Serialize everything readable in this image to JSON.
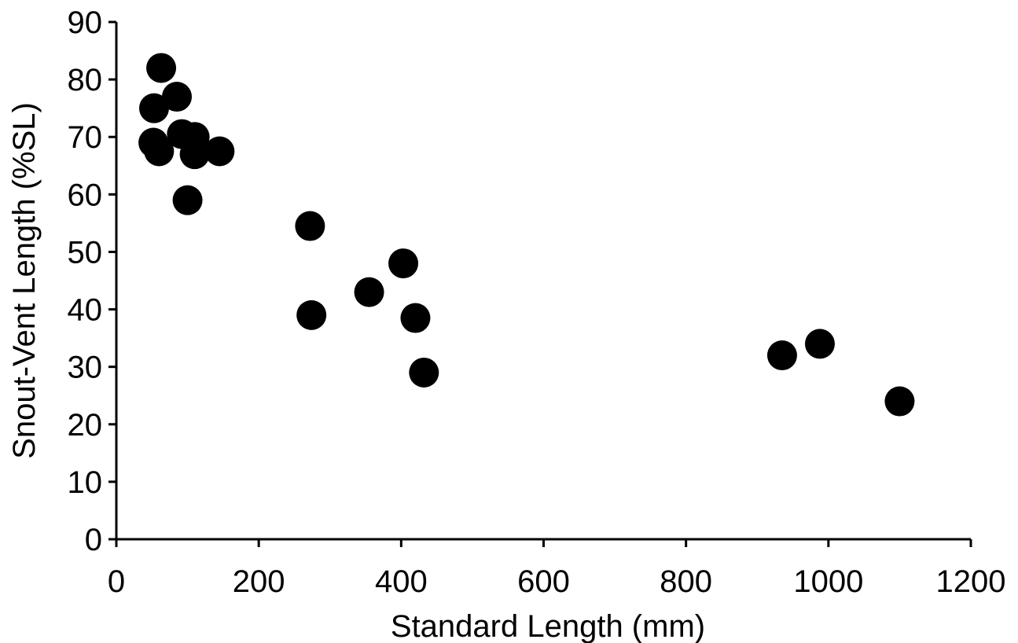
{
  "chart_data": {
    "type": "scatter",
    "xlabel": "Standard Length (mm)",
    "ylabel": "Snout-Vent Length (%SL)",
    "xlim": [
      0,
      1200
    ],
    "ylim": [
      0,
      90
    ],
    "x_ticks": [
      "0",
      "200",
      "400",
      "600",
      "800",
      "1000",
      "1200"
    ],
    "y_ticks": [
      "0",
      "10",
      "20",
      "30",
      "40",
      "50",
      "60",
      "70",
      "80",
      "90"
    ],
    "grid": false,
    "point_color": "#000000",
    "series": [
      {
        "points": [
          {
            "x": 63,
            "y": 82
          },
          {
            "x": 85,
            "y": 77
          },
          {
            "x": 53,
            "y": 75
          },
          {
            "x": 92,
            "y": 70.5
          },
          {
            "x": 110,
            "y": 70
          },
          {
            "x": 52,
            "y": 69
          },
          {
            "x": 60,
            "y": 67.5
          },
          {
            "x": 110,
            "y": 67
          },
          {
            "x": 145,
            "y": 67.5
          },
          {
            "x": 100,
            "y": 59
          },
          {
            "x": 272,
            "y": 54.5
          },
          {
            "x": 403,
            "y": 48
          },
          {
            "x": 355,
            "y": 43
          },
          {
            "x": 274,
            "y": 39
          },
          {
            "x": 420,
            "y": 38.5
          },
          {
            "x": 432,
            "y": 29
          },
          {
            "x": 935,
            "y": 32
          },
          {
            "x": 988,
            "y": 34
          },
          {
            "x": 1100,
            "y": 24
          }
        ]
      }
    ]
  }
}
